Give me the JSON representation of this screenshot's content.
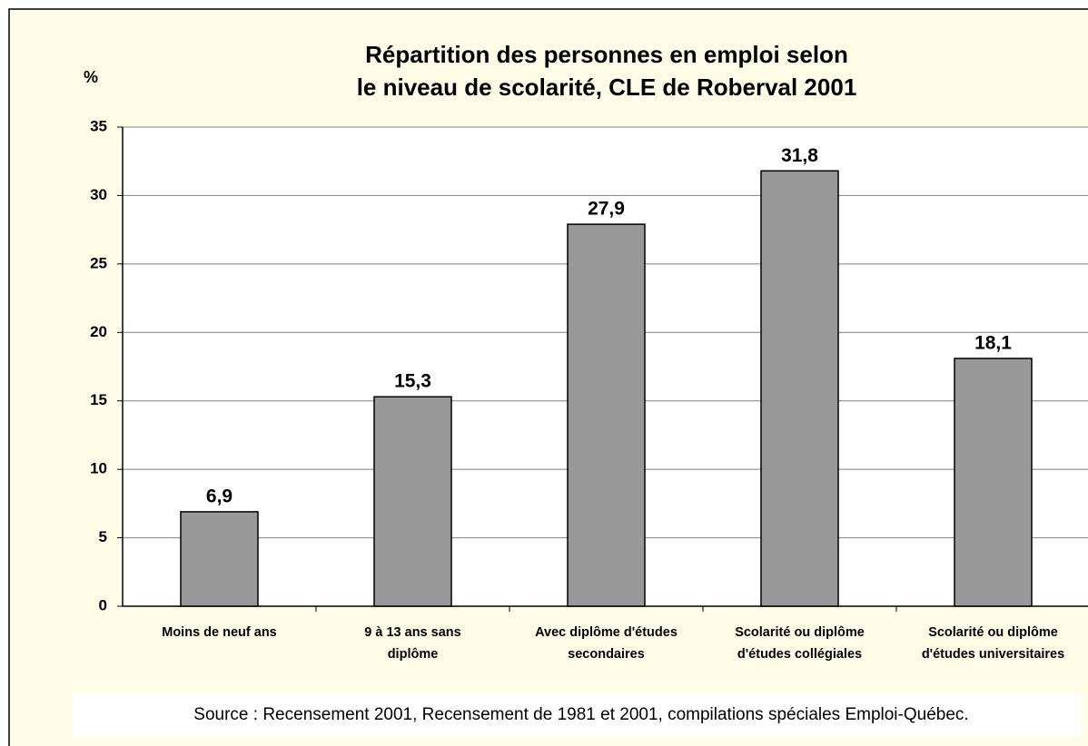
{
  "chart_data": {
    "type": "bar",
    "title": [
      "Répartition des personnes en emploi selon",
      "le niveau de scolarité, CLE de Roberval 2001"
    ],
    "y_label": "%",
    "categories": [
      [
        "Moins de neuf ans"
      ],
      [
        "9 à 13 ans sans",
        "diplôme"
      ],
      [
        "Avec diplôme d'études",
        "secondaires"
      ],
      [
        "Scolarité ou diplôme",
        "d'études collégiales"
      ],
      [
        "Scolarité ou diplôme",
        "d'études universitaires"
      ]
    ],
    "values": [
      6.9,
      15.3,
      27.9,
      31.8,
      18.1
    ],
    "value_labels": [
      "6,9",
      "15,3",
      "27,9",
      "31,8",
      "18,1"
    ],
    "color": "#999999",
    "ylim": [
      0,
      35
    ],
    "yticks": [
      0,
      5,
      10,
      15,
      20,
      25,
      30,
      35
    ],
    "grid": true,
    "source": "Source : Recensement 2001, Recensement de 1981 et 2001, compilations spéciales Emploi-Québec."
  }
}
